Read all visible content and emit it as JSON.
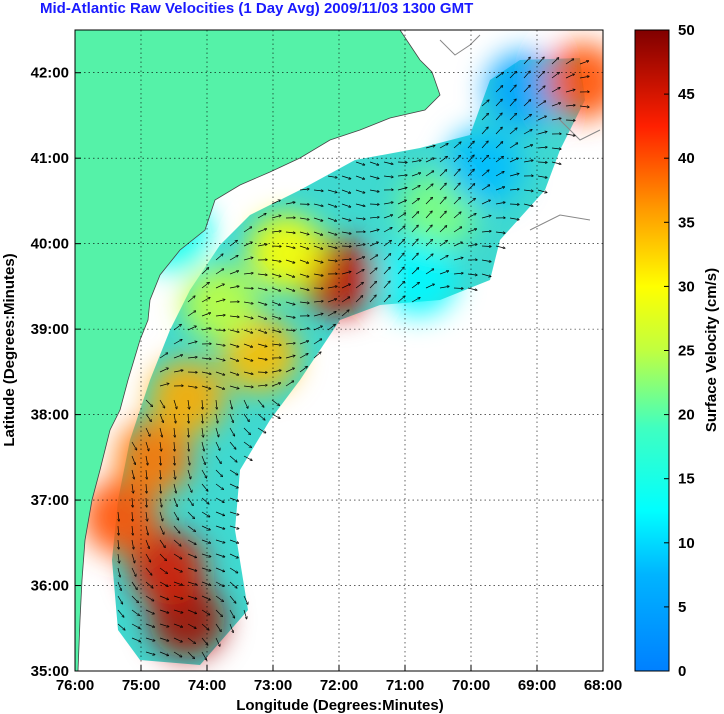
{
  "chart_data": {
    "type": "heatmap",
    "title": "Mid-Atlantic Raw Velocities (1 Day Avg) 2009/11/03 1300 GMT",
    "xlabel": "Longitude (Degrees:Minutes)",
    "ylabel": "Latitude (Degrees:Minutes)",
    "x_ticks": [
      "76:00",
      "75:00",
      "74:00",
      "73:00",
      "72:00",
      "71:00",
      "70:00",
      "69:00",
      "68:00"
    ],
    "y_ticks": [
      "35:00",
      "36:00",
      "37:00",
      "38:00",
      "39:00",
      "40:00",
      "41:00",
      "42:00"
    ],
    "xlim": [
      -76,
      -68
    ],
    "ylim": [
      35,
      42.5
    ],
    "grid": "dotted",
    "colorbar": {
      "label": "Surface Velocity (cm/s)",
      "min": 0,
      "max": 50,
      "ticks": [
        "0",
        "5",
        "10",
        "15",
        "20",
        "25",
        "30",
        "35",
        "40",
        "45",
        "50"
      ],
      "colormap": "jet"
    },
    "field_samples": [
      {
        "lon": -74.3,
        "lat": 35.6,
        "speed": 48
      },
      {
        "lon": -74.6,
        "lat": 36.2,
        "speed": 45
      },
      {
        "lon": -75.3,
        "lat": 36.8,
        "speed": 40
      },
      {
        "lon": -74.8,
        "lat": 37.5,
        "speed": 38
      },
      {
        "lon": -74.3,
        "lat": 38.2,
        "speed": 35
      },
      {
        "lon": -73.2,
        "lat": 38.7,
        "speed": 34
      },
      {
        "lon": -72.0,
        "lat": 39.6,
        "speed": 46
      },
      {
        "lon": -72.8,
        "lat": 39.9,
        "speed": 30
      },
      {
        "lon": -70.5,
        "lat": 40.4,
        "speed": 22
      },
      {
        "lon": -69.8,
        "lat": 40.9,
        "speed": 8
      },
      {
        "lon": -69.2,
        "lat": 41.8,
        "speed": 5
      },
      {
        "lon": -68.3,
        "lat": 41.9,
        "speed": 40
      },
      {
        "lon": -74.5,
        "lat": 40.1,
        "speed": 14
      },
      {
        "lon": -73.8,
        "lat": 39.3,
        "speed": 25
      },
      {
        "lon": -70.8,
        "lat": 39.6,
        "speed": 12
      }
    ]
  },
  "colors": {
    "land": "#55f2a8",
    "title": "#1a1aff",
    "coast_outline": "#555555",
    "background": "#ffffff"
  }
}
